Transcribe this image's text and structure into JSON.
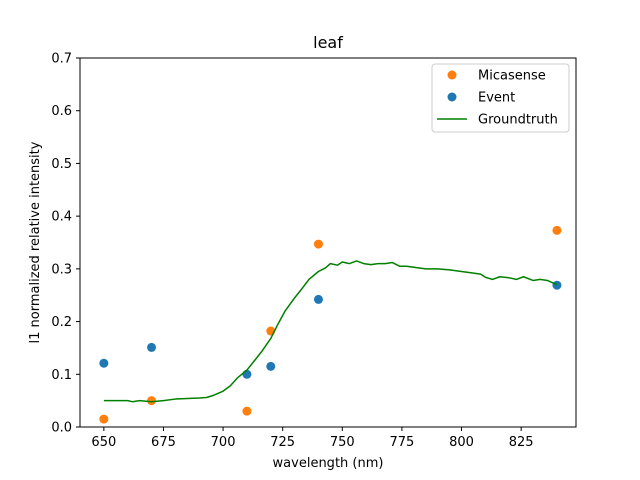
{
  "chart_data": {
    "type": "scatter",
    "title": "leaf",
    "xlabel": "wavelength (nm)",
    "ylabel": "l1 normalized relative intensity",
    "xlim": [
      640,
      848
    ],
    "ylim": [
      0,
      0.7
    ],
    "xticks": [
      650,
      675,
      700,
      725,
      750,
      775,
      800,
      825
    ],
    "yticks": [
      0.0,
      0.1,
      0.2,
      0.3,
      0.4,
      0.5,
      0.6,
      0.7
    ],
    "ytick_labels": [
      "0.0",
      "0.1",
      "0.2",
      "0.3",
      "0.4",
      "0.5",
      "0.6",
      "0.7"
    ],
    "xtick_labels": [
      "650",
      "675",
      "700",
      "725",
      "750",
      "775",
      "800",
      "825"
    ],
    "grid": false,
    "legend_position": "top-right",
    "series": [
      {
        "name": "Micasense",
        "kind": "scatter",
        "color": "#ff7f0e",
        "points": [
          [
            650,
            0.015
          ],
          [
            670,
            0.05
          ],
          [
            710,
            0.03
          ],
          [
            720,
            0.182
          ],
          [
            740,
            0.347
          ],
          [
            840,
            0.373
          ]
        ]
      },
      {
        "name": "Event",
        "kind": "scatter",
        "color": "#1f77b4",
        "points": [
          [
            650,
            0.121
          ],
          [
            670,
            0.151
          ],
          [
            710,
            0.1
          ],
          [
            720,
            0.115
          ],
          [
            740,
            0.242
          ],
          [
            840,
            0.269
          ]
        ]
      },
      {
        "name": "Groundtruth",
        "kind": "line",
        "color": "#008000",
        "points": [
          [
            650,
            0.05
          ],
          [
            655,
            0.05
          ],
          [
            660,
            0.05
          ],
          [
            662,
            0.048
          ],
          [
            665,
            0.05
          ],
          [
            670,
            0.048
          ],
          [
            675,
            0.05
          ],
          [
            680,
            0.053
          ],
          [
            685,
            0.054
          ],
          [
            690,
            0.055
          ],
          [
            693,
            0.056
          ],
          [
            696,
            0.06
          ],
          [
            700,
            0.068
          ],
          [
            703,
            0.078
          ],
          [
            706,
            0.093
          ],
          [
            710,
            0.108
          ],
          [
            713,
            0.125
          ],
          [
            716,
            0.142
          ],
          [
            720,
            0.168
          ],
          [
            723,
            0.195
          ],
          [
            726,
            0.22
          ],
          [
            730,
            0.245
          ],
          [
            733,
            0.262
          ],
          [
            736,
            0.28
          ],
          [
            740,
            0.295
          ],
          [
            743,
            0.302
          ],
          [
            745,
            0.31
          ],
          [
            748,
            0.307
          ],
          [
            750,
            0.313
          ],
          [
            753,
            0.31
          ],
          [
            756,
            0.315
          ],
          [
            759,
            0.31
          ],
          [
            762,
            0.308
          ],
          [
            765,
            0.31
          ],
          [
            768,
            0.31
          ],
          [
            771,
            0.312
          ],
          [
            774,
            0.305
          ],
          [
            777,
            0.305
          ],
          [
            780,
            0.303
          ],
          [
            785,
            0.3
          ],
          [
            790,
            0.3
          ],
          [
            795,
            0.298
          ],
          [
            800,
            0.295
          ],
          [
            805,
            0.292
          ],
          [
            808,
            0.29
          ],
          [
            810,
            0.284
          ],
          [
            813,
            0.28
          ],
          [
            816,
            0.285
          ],
          [
            820,
            0.283
          ],
          [
            823,
            0.28
          ],
          [
            826,
            0.285
          ],
          [
            830,
            0.278
          ],
          [
            833,
            0.28
          ],
          [
            836,
            0.278
          ],
          [
            840,
            0.27
          ]
        ]
      }
    ]
  }
}
